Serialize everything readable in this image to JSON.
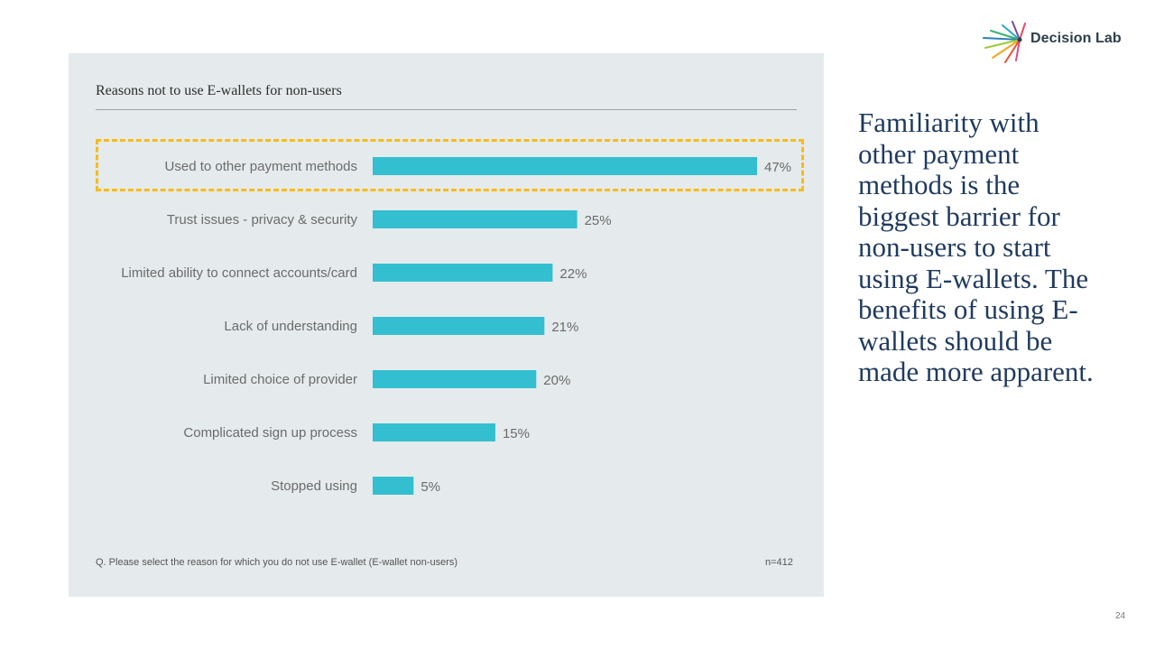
{
  "brand": {
    "name": "Decision Lab"
  },
  "chart_data": {
    "type": "bar",
    "orientation": "horizontal",
    "title": "Reasons not to use E-wallets for non-users",
    "categories": [
      "Used to other payment methods",
      "Trust issues - privacy & security",
      "Limited ability to connect accounts/card",
      "Lack of understanding",
      "Limited choice of provider",
      "Complicated sign up process",
      "Stopped using"
    ],
    "values": [
      47,
      25,
      22,
      21,
      20,
      15,
      5
    ],
    "value_labels": [
      "47%",
      "25%",
      "22%",
      "21%",
      "20%",
      "15%",
      "5%"
    ],
    "unit": "%",
    "bar_color": "#33bfcf",
    "highlight_color": "#f5bc1c",
    "highlighted_category": "Used to other payment methods",
    "grid": false
  },
  "footnote": "Q. Please select the reason for which you do not use E-wallet (E-wallet non-users)",
  "sample_size": "n=412",
  "insight": "Familiarity with other payment methods is the biggest barrier for non-users to start using E-wallets. The benefits of using E-wallets should be made more apparent.",
  "page_number": "24",
  "colors": {
    "panel": "#e5eaec",
    "heading": "#1f3a5f"
  }
}
